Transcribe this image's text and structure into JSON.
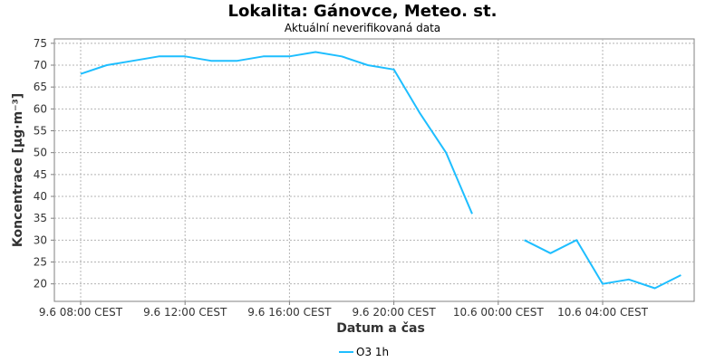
{
  "chart_data": {
    "type": "line",
    "title": "Lokalita: Gánovce, Meteo. st.",
    "subtitle": "Aktuální neverifikovaná data",
    "xlabel": "Datum a čas",
    "ylabel": "Koncentrace [µg·m⁻³]",
    "ylim": [
      16,
      76
    ],
    "yticks": [
      20,
      25,
      30,
      35,
      40,
      45,
      50,
      55,
      60,
      65,
      70,
      75
    ],
    "xticks": [
      {
        "hour": 0,
        "label": "9.6 08:00 CEST"
      },
      {
        "hour": 4,
        "label": "9.6 12:00 CEST"
      },
      {
        "hour": 8,
        "label": "9.6 16:00 CEST"
      },
      {
        "hour": 12,
        "label": "9.6 20:00 CEST"
      },
      {
        "hour": 16,
        "label": "10.6 00:00 CEST"
      },
      {
        "hour": 20,
        "label": "10.6 04:00 CEST"
      }
    ],
    "grid": true,
    "legend_position": "bottom",
    "series": [
      {
        "name": "O3 1h",
        "color": "#1ebeff",
        "points": [
          {
            "hour": 0,
            "value": 68
          },
          {
            "hour": 1,
            "value": 70
          },
          {
            "hour": 2,
            "value": 71
          },
          {
            "hour": 3,
            "value": 72
          },
          {
            "hour": 4,
            "value": 72
          },
          {
            "hour": 5,
            "value": 71
          },
          {
            "hour": 6,
            "value": 71
          },
          {
            "hour": 7,
            "value": 72
          },
          {
            "hour": 8,
            "value": 72
          },
          {
            "hour": 9,
            "value": 73
          },
          {
            "hour": 10,
            "value": 72
          },
          {
            "hour": 11,
            "value": 70
          },
          {
            "hour": 12,
            "value": 69
          },
          {
            "hour": 13,
            "value": 59
          },
          {
            "hour": 14,
            "value": 50
          },
          {
            "hour": 15,
            "value": 36
          },
          {
            "hour": 16,
            "value": null
          },
          {
            "hour": 17,
            "value": 30
          },
          {
            "hour": 18,
            "value": 27
          },
          {
            "hour": 19,
            "value": 30
          },
          {
            "hour": 20,
            "value": 20
          },
          {
            "hour": 21,
            "value": 21
          },
          {
            "hour": 22,
            "value": 19
          },
          {
            "hour": 23,
            "value": 22
          }
        ]
      }
    ]
  }
}
